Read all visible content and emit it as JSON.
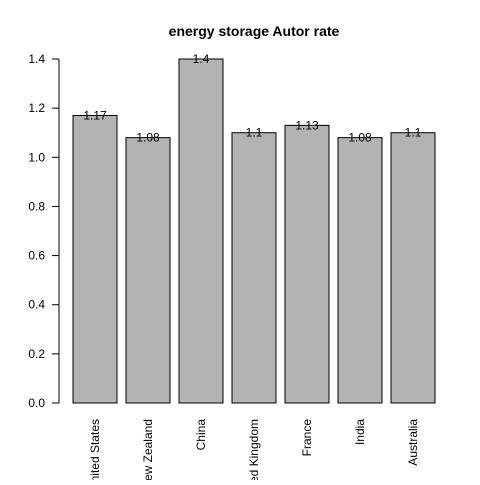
{
  "chart_data": {
    "type": "bar",
    "title": "energy storage Autor rate",
    "xlabel": "",
    "ylabel": "",
    "categories": [
      "United States",
      "New Zealand",
      "China",
      "United Kingdom",
      "France",
      "India",
      "Australia"
    ],
    "values": [
      1.17,
      1.08,
      1.4,
      1.1,
      1.13,
      1.08,
      1.1
    ],
    "value_labels": [
      "1.17",
      "1.08",
      "1.4",
      "1.1",
      "1.13",
      "1.08",
      "1.1"
    ],
    "ylim": [
      0,
      1.4
    ],
    "yticks": [
      0,
      0.2,
      0.4,
      0.6,
      0.8,
      1.0,
      1.2,
      1.4
    ],
    "ytick_labels": [
      "0.0",
      "0.2",
      "0.4",
      "0.6",
      "0.8",
      "1.0",
      "1.2",
      "1.4"
    ],
    "bar_color": "#b3b3b3",
    "bar_edge_color": "#000000",
    "grid": false,
    "legend": "none"
  }
}
